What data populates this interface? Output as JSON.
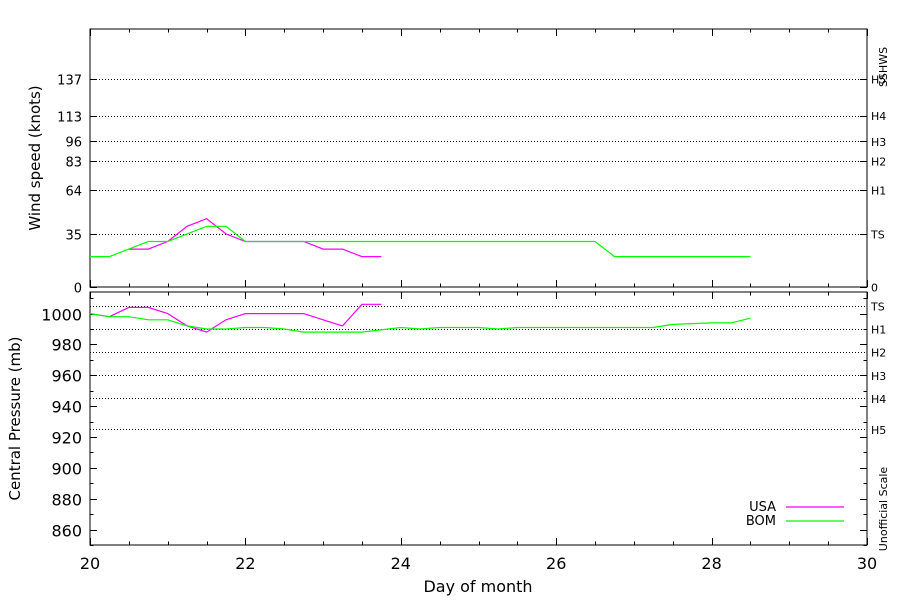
{
  "chart_data": [
    {
      "type": "line",
      "ylabel": "Wind speed (knots)",
      "xlim": [
        20,
        30
      ],
      "ylim": [
        0,
        170
      ],
      "y_ticks": [
        "0",
        "35",
        "64",
        "83",
        "96",
        "113",
        "137"
      ],
      "y_tick_values": [
        0,
        35,
        64,
        83,
        96,
        113,
        137
      ],
      "right_scale_title": "SSHWS",
      "right_scale": [
        {
          "label": "0",
          "value": 0
        },
        {
          "label": "TS",
          "value": 35
        },
        {
          "label": "H1",
          "value": 64
        },
        {
          "label": "H2",
          "value": 83
        },
        {
          "label": "H3",
          "value": 96
        },
        {
          "label": "H4",
          "value": 113
        },
        {
          "label": "H5",
          "value": 137
        }
      ],
      "grid": "dotted horizontal lines at category thresholds",
      "series": [
        {
          "name": "USA",
          "color": "#ff00ff",
          "x": [
            20.5,
            20.75,
            21.0,
            21.25,
            21.5,
            21.75,
            22.0,
            22.25,
            22.5,
            22.75,
            23.0,
            23.25,
            23.5,
            23.75
          ],
          "y": [
            25,
            25,
            30,
            40,
            45,
            35,
            30,
            30,
            30,
            30,
            25,
            25,
            20,
            20
          ]
        },
        {
          "name": "BOM",
          "color": "#00ff00",
          "x": [
            20.0,
            20.25,
            20.5,
            20.75,
            21.0,
            21.25,
            21.5,
            21.75,
            22.0,
            22.25,
            22.5,
            22.75,
            23.0,
            23.5,
            24.0,
            25.0,
            26.0,
            26.5,
            26.75,
            27.0,
            28.0,
            28.5
          ],
          "y": [
            20,
            20,
            25,
            30,
            30,
            35,
            40,
            40,
            30,
            30,
            30,
            30,
            30,
            30,
            30,
            30,
            30,
            30,
            20,
            20,
            20,
            20
          ]
        }
      ]
    },
    {
      "type": "line",
      "xlabel": "Day of month",
      "ylabel": "Central Pressure (mb)",
      "xlim": [
        20,
        30
      ],
      "ylim": [
        850,
        1014
      ],
      "x_ticks": [
        "20",
        "22",
        "24",
        "26",
        "28",
        "30"
      ],
      "x_tick_values": [
        20,
        22,
        24,
        26,
        28,
        30
      ],
      "y_ticks": [
        "860",
        "880",
        "900",
        "920",
        "940",
        "960",
        "980",
        "1000"
      ],
      "y_tick_values": [
        860,
        880,
        900,
        920,
        940,
        960,
        980,
        1000
      ],
      "right_scale_title": "Unofficial Scale",
      "right_scale": [
        {
          "label": "TS",
          "value": 1005
        },
        {
          "label": "H1",
          "value": 990
        },
        {
          "label": "H2",
          "value": 975
        },
        {
          "label": "H3",
          "value": 960
        },
        {
          "label": "H4",
          "value": 945
        },
        {
          "label": "H5",
          "value": 925
        }
      ],
      "grid": "dotted horizontal lines at category thresholds",
      "legend": "bottom-right",
      "series": [
        {
          "name": "USA",
          "color": "#ff00ff",
          "x": [
            20.0,
            20.25,
            20.5,
            20.75,
            21.0,
            21.25,
            21.5,
            21.75,
            22.0,
            22.25,
            22.5,
            22.75,
            23.0,
            23.25,
            23.5,
            23.75
          ],
          "y": [
            1000,
            998,
            1004,
            1004,
            1000,
            992,
            988,
            996,
            1000,
            1000,
            1000,
            1000,
            996,
            992,
            1006,
            1006
          ]
        },
        {
          "name": "BOM",
          "color": "#00ff00",
          "x": [
            20.0,
            20.25,
            20.5,
            20.75,
            21.0,
            21.25,
            21.5,
            21.75,
            22.0,
            22.25,
            22.5,
            22.75,
            23.0,
            23.5,
            24.0,
            24.25,
            24.5,
            25.0,
            25.25,
            25.5,
            26.0,
            27.0,
            27.25,
            27.5,
            28.0,
            28.25,
            28.5
          ],
          "y": [
            1000,
            998,
            998,
            996,
            996,
            992,
            990,
            990,
            991,
            991,
            990,
            988,
            988,
            988,
            991,
            990,
            991,
            991,
            990,
            991,
            991,
            991,
            991,
            993,
            994,
            994,
            997
          ]
        }
      ]
    }
  ]
}
